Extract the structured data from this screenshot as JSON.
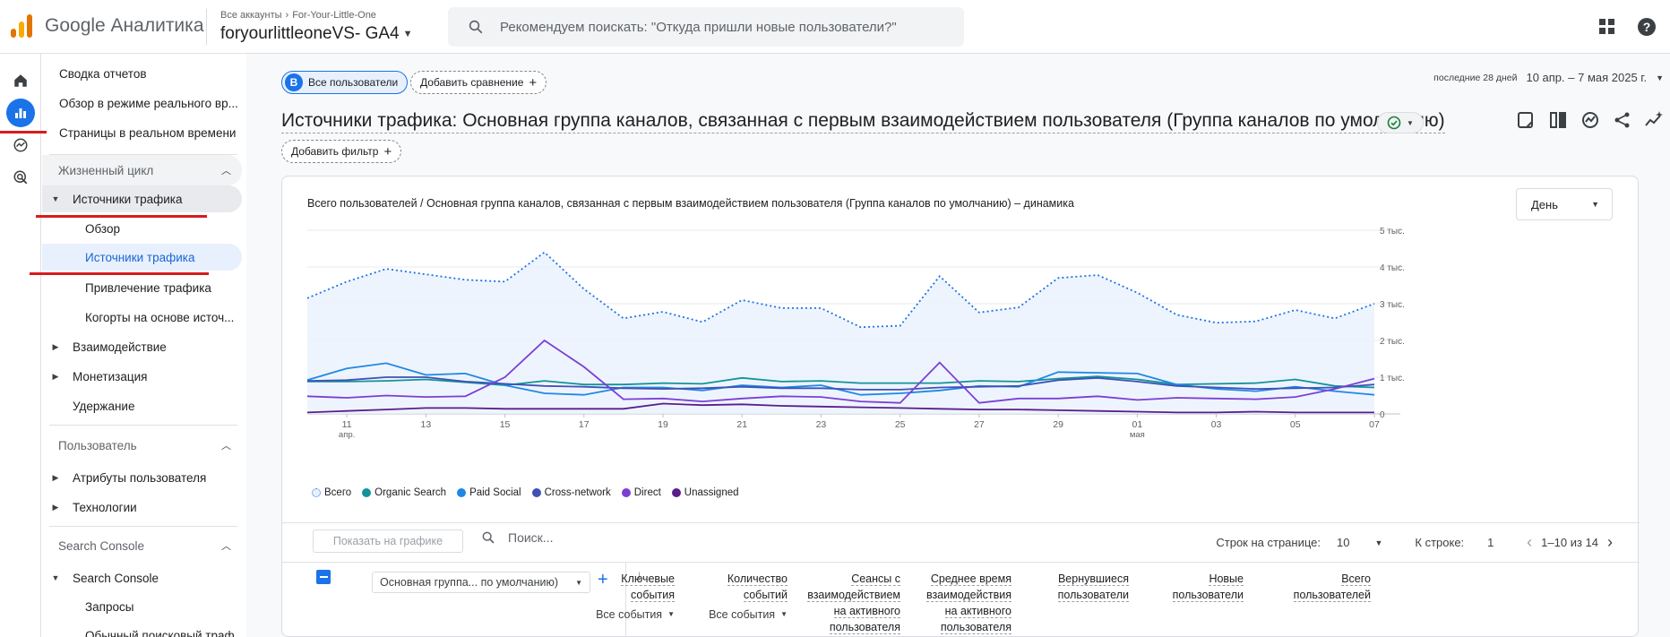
{
  "header": {
    "brand": "Google Аналитика",
    "breadcrumb": [
      "Все аккаунты",
      "For-Your-Little-One"
    ],
    "account": "foryourlittleoneVS- GA4",
    "search_placeholder": "Рекомендуем поискать: \"Откуда пришли новые пользователи?\""
  },
  "nav": {
    "top_items": [
      "Сводка отчетов",
      "Обзор в режиме реального вр...",
      "Страницы в реальном времени"
    ],
    "lifecycle": {
      "header": "Жизненный цикл",
      "acquisition": "Источники трафика",
      "acquisition_children": [
        "Обзор",
        "Источники трафика",
        "Привлечение трафика",
        "Когорты на основе источ..."
      ],
      "others": [
        "Взаимодействие",
        "Монетизация",
        "Удержание"
      ]
    },
    "user": {
      "header": "Пользователь",
      "items": [
        "Атрибуты пользователя",
        "Технологии"
      ]
    },
    "search_console": {
      "header": "Search Console",
      "group": "Search Console",
      "children": [
        "Запросы",
        "Обычный поисковый траф..."
      ]
    }
  },
  "toolbar": {
    "segment_letter": "B",
    "segment": "Все пользователи",
    "add_comparison": "Добавить сравнение",
    "date_label": "последние 28 дней",
    "date_range": "10 апр. – 7 мая 2025 г.",
    "add_filter": "Добавить фильтр"
  },
  "report": {
    "title": "Источники трафика: Основная группа каналов, связанная с первым взаимодействием пользователя (Группа каналов по умолчанию)"
  },
  "card": {
    "title": "Всего пользователей / Основная группа каналов, связанная с первым взаимодействием пользователя (Группа каналов по умолчанию) – динамика",
    "granularity": "День"
  },
  "chart_data": {
    "type": "line",
    "x": [
      "10 апр.",
      "11 апр.",
      "12 апр.",
      "13 апр.",
      "14 апр.",
      "15 апр.",
      "16 апр.",
      "17 апр.",
      "18 апр.",
      "19 апр.",
      "20 апр.",
      "21 апр.",
      "22 апр.",
      "23 апр.",
      "24 апр.",
      "25 апр.",
      "26 апр.",
      "27 апр.",
      "28 апр.",
      "29 апр.",
      "30 апр.",
      "01 мая",
      "02 мая",
      "03 мая",
      "04 мая",
      "05 мая",
      "06 мая",
      "07 мая"
    ],
    "x_tick_labels": [
      {
        "day": "11",
        "month": "апр."
      },
      {
        "day": "13",
        "month": ""
      },
      {
        "day": "15",
        "month": ""
      },
      {
        "day": "17",
        "month": ""
      },
      {
        "day": "19",
        "month": ""
      },
      {
        "day": "21",
        "month": ""
      },
      {
        "day": "23",
        "month": ""
      },
      {
        "day": "25",
        "month": ""
      },
      {
        "day": "27",
        "month": ""
      },
      {
        "day": "29",
        "month": ""
      },
      {
        "day": "01",
        "month": "мая"
      },
      {
        "day": "03",
        "month": ""
      },
      {
        "day": "05",
        "month": ""
      },
      {
        "day": "07",
        "month": ""
      }
    ],
    "y_ticks": [
      "0",
      "1 тыс.",
      "2 тыс.",
      "3 тыс.",
      "4 тыс.",
      "5 тыс."
    ],
    "ylim": [
      0,
      5000
    ],
    "series": [
      {
        "name": "Всего",
        "color": "#1a73e8",
        "style": "dotted-area",
        "values": [
          3150,
          3600,
          3950,
          3800,
          3650,
          3600,
          4400,
          3400,
          2600,
          2780,
          2500,
          3100,
          2880,
          2880,
          2360,
          2400,
          3750,
          2760,
          2900,
          3700,
          3780,
          3300,
          2700,
          2480,
          2520,
          2830,
          2600,
          3000
        ]
      },
      {
        "name": "Organic Search",
        "color": "#12939a",
        "style": "solid",
        "values": [
          880,
          880,
          900,
          940,
          860,
          780,
          900,
          800,
          800,
          840,
          820,
          980,
          880,
          900,
          840,
          840,
          840,
          900,
          880,
          960,
          1020,
          940,
          800,
          820,
          840,
          940,
          760,
          720
        ]
      },
      {
        "name": "Paid Social",
        "color": "#1e88e5",
        "style": "solid",
        "values": [
          920,
          1240,
          1380,
          1060,
          1100,
          780,
          560,
          520,
          720,
          720,
          640,
          780,
          720,
          780,
          520,
          560,
          640,
          760,
          740,
          1140,
          1120,
          1100,
          800,
          680,
          620,
          740,
          620,
          520
        ]
      },
      {
        "name": "Cross-network",
        "color": "#3f51b5",
        "style": "solid",
        "values": [
          900,
          920,
          1000,
          1000,
          880,
          820,
          760,
          740,
          700,
          680,
          700,
          740,
          700,
          700,
          660,
          660,
          720,
          740,
          760,
          920,
          980,
          880,
          760,
          720,
          680,
          700,
          720,
          800
        ]
      },
      {
        "name": "Direct",
        "color": "#7b3fd4",
        "style": "solid",
        "values": [
          480,
          440,
          500,
          460,
          480,
          1000,
          2000,
          1280,
          400,
          420,
          340,
          420,
          480,
          460,
          340,
          300,
          1400,
          300,
          420,
          420,
          480,
          380,
          440,
          420,
          400,
          460,
          680,
          960
        ]
      },
      {
        "name": "Unassigned",
        "color": "#5a1e8c",
        "style": "solid",
        "values": [
          40,
          80,
          120,
          160,
          160,
          140,
          140,
          140,
          140,
          280,
          240,
          260,
          220,
          200,
          180,
          160,
          140,
          120,
          120,
          100,
          80,
          60,
          40,
          40,
          60,
          40,
          40,
          40
        ]
      }
    ]
  },
  "table": {
    "plot_button": "Показать на графике",
    "search_placeholder": "Поиск...",
    "rows_label": "Строк на странице:",
    "rows_value": "10",
    "goto_label": "К строке:",
    "goto_value": "1",
    "range": "1–10 из 14",
    "dimension": "Основная группа... по умолчанию)",
    "columns": [
      {
        "lines": [
          "Всего",
          "пользователей"
        ]
      },
      {
        "lines": [
          "Новые",
          "пользователи"
        ]
      },
      {
        "lines": [
          "Вернувшиеся",
          "пользователи"
        ]
      },
      {
        "lines": [
          "Среднее время",
          "взаимодействия",
          "на активного",
          "пользователя"
        ]
      },
      {
        "lines": [
          "Сеансы с",
          "взаимодействием",
          "на активного",
          "пользователя"
        ]
      },
      {
        "lines": [
          "Количество",
          "событий"
        ],
        "event_select": "Все события"
      },
      {
        "lines": [
          "Ключевые",
          "события"
        ],
        "event_select": "Все события"
      }
    ]
  }
}
